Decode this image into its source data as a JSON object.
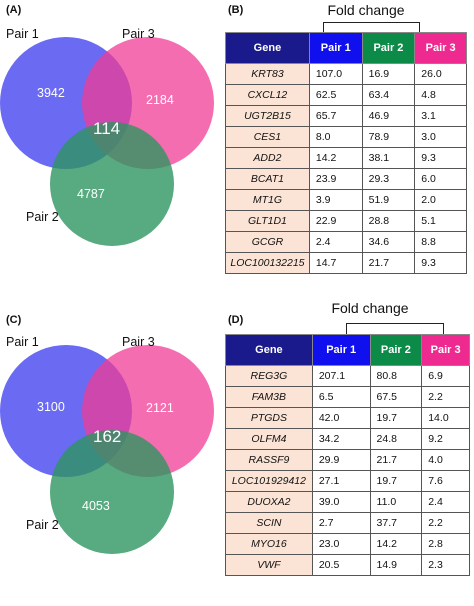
{
  "panels": [
    {
      "label": "(A)",
      "venn": {
        "pair1_label": "Pair 1",
        "pair2_label": "Pair 2",
        "pair3_label": "Pair 3",
        "only1": "3942",
        "only3": "2184",
        "only2": "4787",
        "center": "114"
      }
    },
    {
      "label": "(B)",
      "fold_change": "Fold change",
      "headers": [
        "Gene",
        "Pair 1",
        "Pair 2",
        "Pair 3"
      ],
      "rows": [
        [
          "KRT83",
          "107.0",
          "16.9",
          "26.0"
        ],
        [
          "CXCL12",
          "62.5",
          "63.4",
          "4.8"
        ],
        [
          "UGT2B15",
          "65.7",
          "46.9",
          "3.1"
        ],
        [
          "CES1",
          "8.0",
          "78.9",
          "3.0"
        ],
        [
          "ADD2",
          "14.2",
          "38.1",
          "9.3"
        ],
        [
          "BCAT1",
          "23.9",
          "29.3",
          "6.0"
        ],
        [
          "MT1G",
          "3.9",
          "51.9",
          "2.0"
        ],
        [
          "GLT1D1",
          "22.9",
          "28.8",
          "5.1"
        ],
        [
          "GCGR",
          "2.4",
          "34.6",
          "8.8"
        ],
        [
          "LOC100132215",
          "14.7",
          "21.7",
          "9.3"
        ]
      ]
    },
    {
      "label": "(C)",
      "venn": {
        "pair1_label": "Pair 1",
        "pair2_label": "Pair 2",
        "pair3_label": "Pair 3",
        "only1": "3100",
        "only3": "2121",
        "only2": "4053",
        "center": "162"
      }
    },
    {
      "label": "(D)",
      "fold_change": "Fold change",
      "headers": [
        "Gene",
        "Pair 1",
        "Pair 2",
        "Pair 3"
      ],
      "rows": [
        [
          "REG3G",
          "207.1",
          "80.8",
          "6.9"
        ],
        [
          "FAM3B",
          "6.5",
          "67.5",
          "2.2"
        ],
        [
          "PTGDS",
          "42.0",
          "19.7",
          "14.0"
        ],
        [
          "OLFM4",
          "34.2",
          "24.8",
          "9.2"
        ],
        [
          "RASSF9",
          "29.9",
          "21.7",
          "4.0"
        ],
        [
          "LOC101929412",
          "27.1",
          "19.7",
          "7.6"
        ],
        [
          "DUOXA2",
          "39.0",
          "11.0",
          "2.4"
        ],
        [
          "SCIN",
          "2.7",
          "37.7",
          "2.2"
        ],
        [
          "MYO16",
          "23.0",
          "14.2",
          "2.8"
        ],
        [
          "VWF",
          "20.5",
          "14.9",
          "2.3"
        ]
      ]
    }
  ],
  "colors": {
    "pair1": "#6b6bf4",
    "pair2": "#3a9a62",
    "pair3": "#f0509e",
    "header_gene": "#1a1a8c",
    "header_p1": "#1010ee",
    "header_p2": "#0b8a48",
    "header_p3": "#ee2a90",
    "gene_cell": "#fbe4d5"
  }
}
